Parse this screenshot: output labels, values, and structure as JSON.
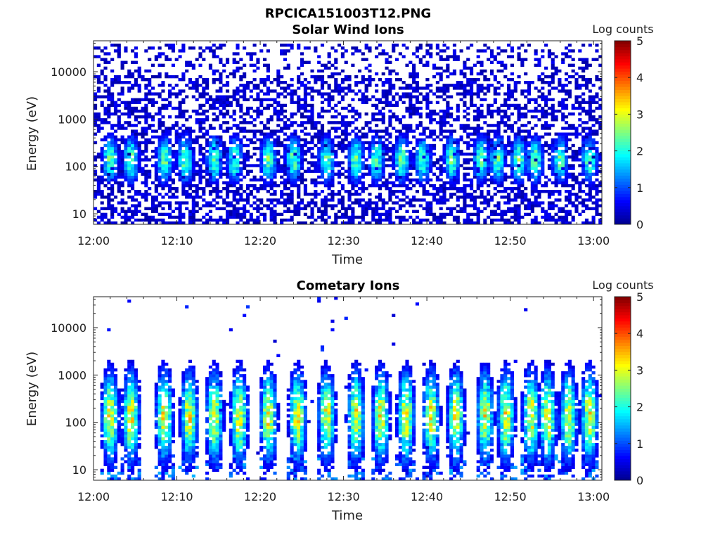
{
  "figure": {
    "title": "RPCICA151003T12.PNG"
  },
  "colors": {
    "jet": [
      "#00008f",
      "#0000ff",
      "#0080ff",
      "#00ffff",
      "#80ff80",
      "#ffff00",
      "#ff8000",
      "#ff0000",
      "#800000"
    ]
  },
  "chart_data": [
    {
      "type": "heatmap",
      "title": "Solar Wind Ions",
      "xlabel": "Time",
      "ylabel": "Energy (eV)",
      "x_range": [
        "12:00",
        "13:01"
      ],
      "x_ticks": [
        "12:00",
        "12:10",
        "12:20",
        "12:30",
        "12:40",
        "12:50",
        "13:00"
      ],
      "y_scale": "log",
      "y_range": [
        6,
        45000
      ],
      "y_ticks": [
        10,
        100,
        1000,
        10000
      ],
      "y_tick_labels": [
        "10",
        "100",
        "1000",
        "10000"
      ],
      "colorbar": {
        "label": "Log counts",
        "range": [
          0,
          5
        ],
        "ticks": [
          "0",
          "1",
          "2",
          "3",
          "4",
          "5"
        ]
      },
      "burst_times_min": [
        2,
        4.5,
        8.5,
        11,
        14.5,
        17,
        21,
        24,
        28,
        31.5,
        34,
        37,
        39.5,
        43,
        46.5,
        48.5,
        51,
        53,
        56,
        59.5
      ],
      "burst_peak_log_counts": 2.3,
      "burst_energy_range_eV": [
        40,
        500
      ],
      "background_log_counts": 0.5,
      "background_energy_range_eV": [
        6,
        40000
      ]
    },
    {
      "type": "heatmap",
      "title": "Cometary Ions",
      "xlabel": "Time",
      "ylabel": "Energy (eV)",
      "x_range": [
        "12:00",
        "13:01"
      ],
      "x_ticks": [
        "12:00",
        "12:10",
        "12:20",
        "12:30",
        "12:40",
        "12:50",
        "13:00"
      ],
      "y_scale": "log",
      "y_range": [
        6,
        45000
      ],
      "y_ticks": [
        10,
        100,
        1000,
        10000
      ],
      "y_tick_labels": [
        "10",
        "100",
        "1000",
        "10000"
      ],
      "colorbar": {
        "label": "Log counts",
        "range": [
          0,
          5
        ],
        "ticks": [
          "0",
          "1",
          "2",
          "3",
          "4",
          "5"
        ]
      },
      "burst_times_min": [
        2,
        4.5,
        8.5,
        11.5,
        14.5,
        17.5,
        21,
        24.5,
        28,
        31.5,
        34.5,
        37.5,
        40.5,
        43.5,
        47,
        49.5,
        52.5,
        54.5,
        57,
        59.5
      ],
      "burst_peak_log_counts": 3.0,
      "burst_energy_range_eV": [
        12,
        1500
      ],
      "background_log_counts": 0.3
    }
  ]
}
